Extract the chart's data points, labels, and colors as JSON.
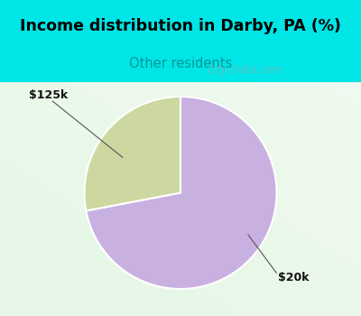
{
  "title": "Income distribution in Darby, PA (%)",
  "subtitle": "Other residents",
  "subtitle_color": "#009999",
  "title_bg_color": "#00e5e5",
  "chart_bg_top": "#d8f0d8",
  "chart_bg_bot": "#e8f8e8",
  "slices": [
    0.72,
    0.28
  ],
  "slice_colors": [
    "#c8b0e0",
    "#ccd8a0"
  ],
  "labels": [
    "$20k",
    "$125k"
  ],
  "label_color": "#111111",
  "watermark": "City-Data.com",
  "start_angle": 90,
  "title_fontsize": 12.5,
  "subtitle_fontsize": 10.5
}
